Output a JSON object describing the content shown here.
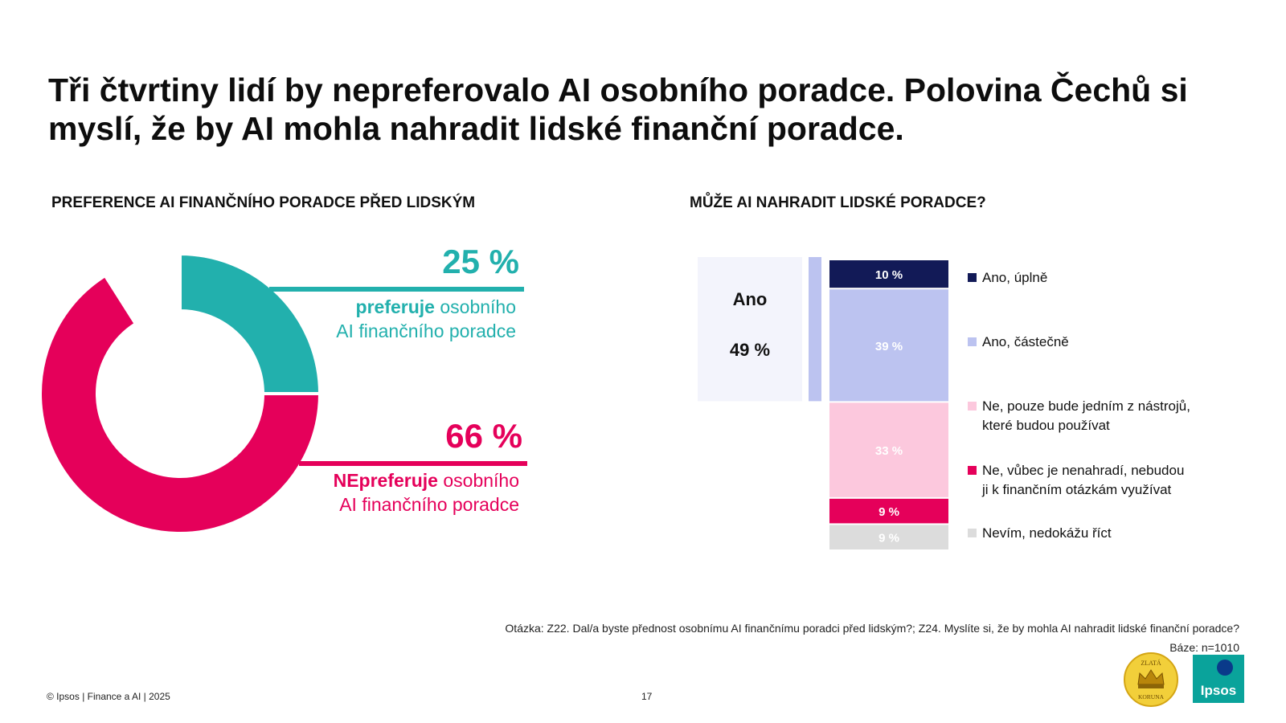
{
  "header": {
    "title": "Tři čtvrtiny lidí by nepreferovalo AI osobního poradce. Polovina Čechů si myslí, že by AI mohla nahradit lidské finanční poradce."
  },
  "left": {
    "section_title": "PREFERENCE AI FINANČNÍHO PORADCE PŘED LIDSKÝM"
  },
  "right": {
    "section_title": "MŮŽE AI NAHRADIT LIDSKÉ PORADCE?"
  },
  "chart_data": [
    {
      "type": "pie",
      "variant": "donut",
      "slices": [
        {
          "value": 25,
          "label": "25 %",
          "caption_bold": "preferuje",
          "caption_rest": " osobního",
          "caption_line2": "AI finančního poradce",
          "color": "#22b0ad"
        },
        {
          "value": 66,
          "label": "66 %",
          "caption_bold": "NEpreferuje",
          "caption_rest": " osobního",
          "caption_line2": "AI finančního poradce",
          "color": "#e5005a"
        },
        {
          "value": 9,
          "label": "",
          "color": "#ffffff"
        }
      ]
    },
    {
      "type": "bar",
      "stacked": true,
      "orientation": "vertical",
      "segments": [
        {
          "name": "Ano, úplně",
          "value": 10,
          "label": "10 %",
          "color": "#121a57",
          "text_color": "#ffffff"
        },
        {
          "name": "Ano, částečně",
          "value": 39,
          "label": "39 %",
          "color": "#bcc3f0",
          "text_color": "#ffffff"
        },
        {
          "name": "Ne, pouze bude jedním z nástrojů, které budou používat",
          "value": 33,
          "label": "33 %",
          "color": "#fcc8dd",
          "text_color": "#ffffff"
        },
        {
          "name": "Ne, vůbec je nenahradí, nebudou ji k finančním otázkám využívat",
          "value": 9,
          "label": "9 %",
          "color": "#e5005a",
          "text_color": "#ffffff"
        },
        {
          "name": "Nevím, nedokážu říct",
          "value": 9,
          "label": "9 %",
          "color": "#dcdcdc",
          "text_color": "#ffffff"
        }
      ],
      "legend": [
        {
          "lines": [
            "Ano, úplně"
          ],
          "color": "#121a57"
        },
        {
          "lines": [
            "Ano, částečně"
          ],
          "color": "#bcc3f0"
        },
        {
          "lines": [
            "Ne, pouze bude jedním z nástrojů,",
            "které budou používat"
          ],
          "color": "#fcc8dd"
        },
        {
          "lines": [
            "Ne, vůbec je nenahradí, nebudou",
            "ji k finančním otázkám využívat"
          ],
          "color": "#e5005a"
        },
        {
          "lines": [
            "Nevím, nedokážu říct"
          ],
          "color": "#dcdcdc"
        }
      ],
      "summary": {
        "label": "Ano",
        "value": 49,
        "value_label": "49 %",
        "bar_color": "#bcc3f0",
        "box_color": "#f3f4fc"
      }
    }
  ],
  "footnote": {
    "question": "Otázka: Z22. Dal/a byste přednost osobnímu AI finančnímu poradci před lidským?; Z24. Myslíte si, že by mohla AI nahradit lidské finanční poradce?",
    "base": "Báze: n=1010"
  },
  "footer": {
    "copyright": "© Ipsos | Finance a AI | 2025",
    "page": "17"
  },
  "logos": {
    "crown_line1": "ZLATÁ",
    "crown_line2": "KORUNA",
    "ipsos": "Ipsos"
  }
}
